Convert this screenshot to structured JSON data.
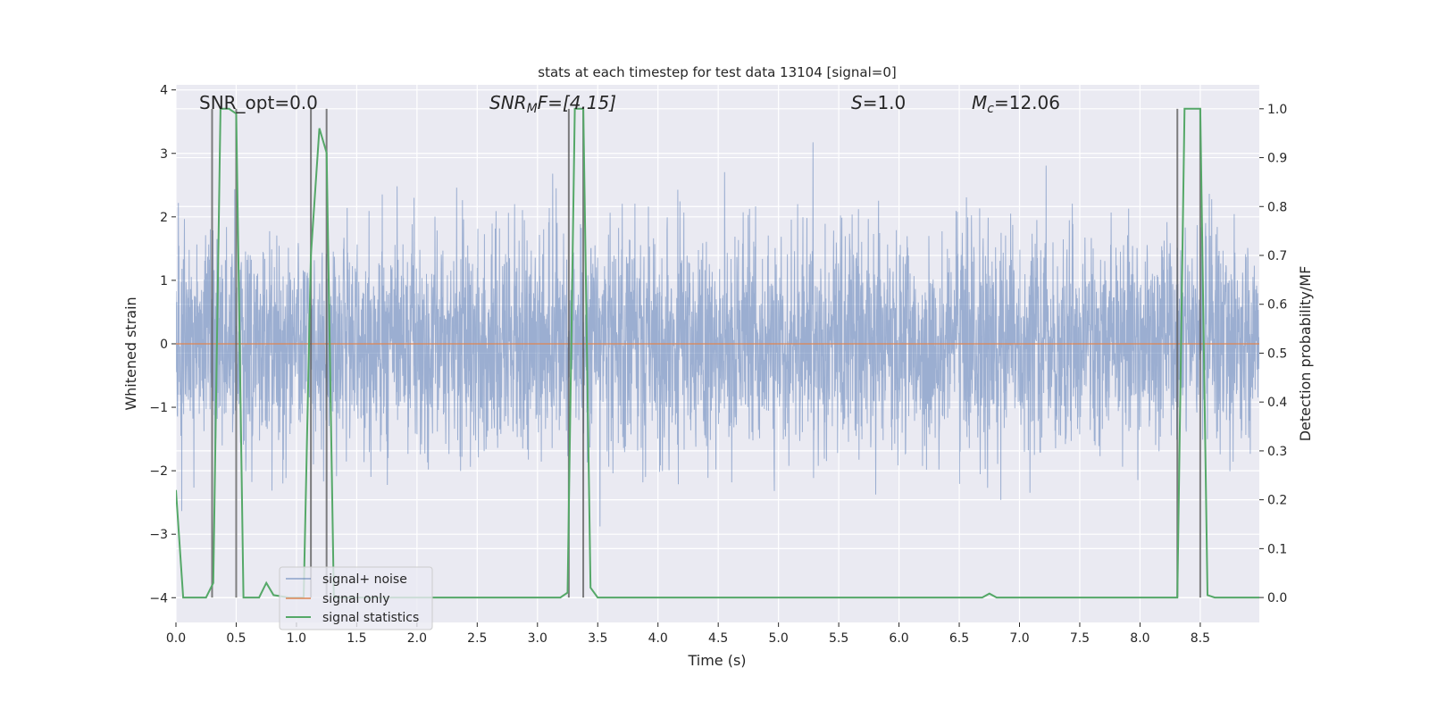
{
  "chart_data": {
    "type": "line",
    "title": "stats at each timestep for test data 13104 [signal=0]",
    "xlabel": "Time (s)",
    "ylabel": "Whitened strain",
    "ylabel_right": "Detection probability/MF",
    "xlim": [
      0,
      8.99
    ],
    "ylim": [
      -4.39,
      4.08
    ],
    "ylim_right": [
      -0.051,
      1.049
    ],
    "grid": true,
    "x_ticks": [
      "0.0",
      "0.5",
      "1.0",
      "1.5",
      "2.0",
      "2.5",
      "3.0",
      "3.5",
      "4.0",
      "4.5",
      "5.0",
      "5.5",
      "6.0",
      "6.5",
      "7.0",
      "7.5",
      "8.0",
      "8.5"
    ],
    "x_tick_values": [
      0,
      0.5,
      1,
      1.5,
      2,
      2.5,
      3,
      3.5,
      4,
      4.5,
      5,
      5.5,
      6,
      6.5,
      7,
      7.5,
      8,
      8.5
    ],
    "y_ticks": [
      "4",
      "3",
      "2",
      "1",
      "0",
      "−1",
      "−2",
      "−3",
      "−4"
    ],
    "y_tick_values": [
      4,
      3,
      2,
      1,
      0,
      -1,
      -2,
      -3,
      -4
    ],
    "y_right_ticks": [
      "1.0",
      "0.9",
      "0.8",
      "0.7",
      "0.6",
      "0.5",
      "0.4",
      "0.3",
      "0.2",
      "0.1",
      "0.0"
    ],
    "y_right_tick_values": [
      1.0,
      0.9,
      0.8,
      0.7,
      0.6,
      0.5,
      0.4,
      0.3,
      0.2,
      0.1,
      0.0
    ],
    "annotations": {
      "snr_opt": "SNR_opt=0.0",
      "snr_mf_base": "SNR",
      "snr_mf_sub": "M",
      "snr_mf_rest": "F=[4.15]",
      "s_sym": "S",
      "s_rest": "=1.0",
      "mc_sym": "M",
      "mc_sub": "c",
      "mc_rest": "=12.06"
    },
    "legend": {
      "placement": "lower-left",
      "entries": [
        "signal+ noise",
        "signal only",
        "signal statistics"
      ]
    },
    "colors": {
      "background": "#eaeaf2",
      "signal_noise": "#4c72b0",
      "signal_only": "#dd8452",
      "signal_statistics": "#55a868",
      "markers": "#555555"
    },
    "series": [
      {
        "name": "signal+ noise",
        "axis": "left",
        "kind": "gaussian-noise",
        "std": 0.85,
        "samples": 4096
      },
      {
        "name": "signal only",
        "axis": "left",
        "x": [
          0,
          8.99
        ],
        "y": [
          0,
          0
        ]
      },
      {
        "name": "signal statistics",
        "axis": "right",
        "x": [
          0,
          0.06,
          0.25,
          0.31,
          0.37,
          0.44,
          0.5,
          0.56,
          0.69,
          0.75,
          0.81,
          0.94,
          1.06,
          1.12,
          1.19,
          1.25,
          1.31,
          1.37,
          3.19,
          3.25,
          3.31,
          3.38,
          3.44,
          3.5,
          6.69,
          6.75,
          6.81,
          8.31,
          8.37,
          8.5,
          8.56,
          8.62,
          8.99
        ],
        "y": [
          0.22,
          0,
          0,
          0.03,
          1.0,
          1.0,
          0.99,
          0,
          0,
          0.03,
          0.005,
          0,
          0,
          0.7,
          0.96,
          0.91,
          0,
          0,
          0,
          0.01,
          1.0,
          1.0,
          0.02,
          0,
          0,
          0.008,
          0,
          0,
          1.0,
          1.0,
          0.005,
          0,
          0
        ]
      }
    ],
    "marker_lines": {
      "axis": "right",
      "x": [
        0.3,
        0.5,
        1.12,
        1.25,
        3.26,
        3.38,
        8.31,
        8.5
      ],
      "y_range": [
        0,
        1.0
      ]
    }
  }
}
